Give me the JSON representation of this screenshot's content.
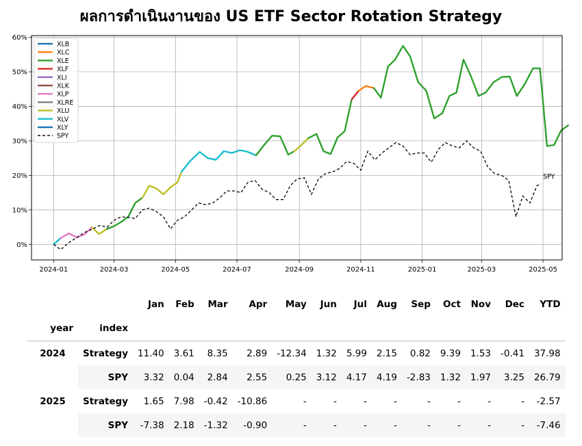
{
  "title": "ผลการดำเนินงานของ US ETF Sector Rotation Strategy",
  "chart_data": {
    "type": "line",
    "title": "ผลการดำเนินงานของ US ETF Sector Rotation Strategy",
    "xlabel": "",
    "ylabel": "",
    "xlim": [
      "2023-12-10",
      "2025-05-20"
    ],
    "ylim": [
      -4.5,
      60.5
    ],
    "grid": true,
    "legend_position": "top-left",
    "x_ticks": [
      "2024-01",
      "2024-03",
      "2024-05",
      "2024-07",
      "2024-09",
      "2024-11",
      "2025-01",
      "2025-03",
      "2025-05"
    ],
    "y_ticks": [
      "0%",
      "10%",
      "20%",
      "30%",
      "40%",
      "50%",
      "60%"
    ],
    "y_tick_values": [
      0,
      10,
      20,
      30,
      40,
      50,
      60
    ],
    "legend": [
      {
        "name": "XLB",
        "color": "#1f77b4",
        "dash": false
      },
      {
        "name": "XLC",
        "color": "#ff7f0e",
        "dash": false
      },
      {
        "name": "XLE",
        "color": "#2ca02c",
        "dash": false
      },
      {
        "name": "XLF",
        "color": "#d62728",
        "dash": false
      },
      {
        "name": "XLI",
        "color": "#9467bd",
        "dash": false
      },
      {
        "name": "XLK",
        "color": "#8c564b",
        "dash": false
      },
      {
        "name": "XLP",
        "color": "#e377c2",
        "dash": false
      },
      {
        "name": "XLRE",
        "color": "#7f7f7f",
        "dash": false
      },
      {
        "name": "XLU",
        "color": "#bcbd22",
        "dash": false
      },
      {
        "name": "XLV",
        "color": "#17becf",
        "dash": false
      },
      {
        "name": "XLY",
        "color": "#1f77b4",
        "dash": false
      },
      {
        "name": "SPY",
        "color": "#000000",
        "dash": true
      }
    ],
    "strategy_segments": [
      {
        "sector": "XLV",
        "points": [
          [
            "2024-01-01",
            0
          ],
          [
            "2024-01-08",
            1.8
          ]
        ]
      },
      {
        "sector": "XLP",
        "points": [
          [
            "2024-01-08",
            1.8
          ],
          [
            "2024-01-16",
            3.2
          ],
          [
            "2024-01-24",
            2.0
          ],
          [
            "2024-02-01",
            3.0
          ],
          [
            "2024-02-08",
            5.0
          ]
        ]
      },
      {
        "sector": "XLU",
        "points": [
          [
            "2024-02-08",
            5.0
          ],
          [
            "2024-02-15",
            3.0
          ],
          [
            "2024-02-23",
            4.5
          ]
        ]
      },
      {
        "sector": "XLE",
        "points": [
          [
            "2024-02-23",
            4.5
          ],
          [
            "2024-03-01",
            5.3
          ],
          [
            "2024-03-08",
            6.5
          ],
          [
            "2024-03-15",
            8.0
          ],
          [
            "2024-03-22",
            12.0
          ],
          [
            "2024-03-29",
            13.5
          ]
        ]
      },
      {
        "sector": "XLU",
        "points": [
          [
            "2024-03-29",
            13.5
          ],
          [
            "2024-04-05",
            17.0
          ],
          [
            "2024-04-12",
            16.2
          ],
          [
            "2024-04-19",
            14.5
          ],
          [
            "2024-04-26",
            16.5
          ],
          [
            "2024-05-03",
            18.0
          ],
          [
            "2024-05-07",
            21.0
          ]
        ]
      },
      {
        "sector": "XLV",
        "points": [
          [
            "2024-05-07",
            21.0
          ],
          [
            "2024-05-15",
            24.0
          ],
          [
            "2024-05-25",
            26.8
          ],
          [
            "2024-06-02",
            25.0
          ],
          [
            "2024-06-10",
            24.5
          ],
          [
            "2024-06-18",
            27.0
          ],
          [
            "2024-06-26",
            26.5
          ],
          [
            "2024-07-04",
            27.3
          ],
          [
            "2024-07-12",
            26.8
          ],
          [
            "2024-07-20",
            25.8
          ]
        ]
      },
      {
        "sector": "XLE",
        "points": [
          [
            "2024-07-20",
            25.8
          ],
          [
            "2024-07-28",
            28.8
          ],
          [
            "2024-08-05",
            31.5
          ],
          [
            "2024-08-13",
            31.3
          ],
          [
            "2024-08-21",
            26.0
          ],
          [
            "2024-08-27",
            27.0
          ]
        ]
      },
      {
        "sector": "XLU",
        "points": [
          [
            "2024-08-27",
            27.0
          ],
          [
            "2024-09-02",
            28.5
          ],
          [
            "2024-09-10",
            30.8
          ]
        ]
      },
      {
        "sector": "XLE",
        "points": [
          [
            "2024-09-10",
            30.8
          ],
          [
            "2024-09-18",
            32.0
          ],
          [
            "2024-09-25",
            27.0
          ],
          [
            "2024-10-02",
            26.2
          ],
          [
            "2024-10-09",
            31.0
          ],
          [
            "2024-10-16",
            32.8
          ],
          [
            "2024-10-23",
            42.0
          ]
        ]
      },
      {
        "sector": "XLF",
        "points": [
          [
            "2024-10-23",
            42.0
          ],
          [
            "2024-10-30",
            44.5
          ]
        ]
      },
      {
        "sector": "XLC",
        "points": [
          [
            "2024-10-30",
            44.5
          ],
          [
            "2024-11-06",
            45.9
          ],
          [
            "2024-11-14",
            45.3
          ]
        ]
      },
      {
        "sector": "XLE",
        "points": [
          [
            "2024-11-14",
            45.3
          ],
          [
            "2024-11-21",
            42.5
          ],
          [
            "2024-11-28",
            51.5
          ],
          [
            "2024-12-05",
            53.5
          ],
          [
            "2024-12-13",
            57.5
          ],
          [
            "2024-12-20",
            54.5
          ],
          [
            "2024-12-28",
            47.0
          ],
          [
            "2025-01-05",
            44.5
          ],
          [
            "2025-01-13",
            36.5
          ],
          [
            "2025-01-21",
            38.0
          ],
          [
            "2025-01-28",
            43.0
          ],
          [
            "2025-02-04",
            44.0
          ],
          [
            "2025-02-11",
            53.5
          ],
          [
            "2025-02-18",
            49.0
          ],
          [
            "2025-02-26",
            43.0
          ],
          [
            "2025-03-05",
            44.0
          ],
          [
            "2025-03-13",
            47.0
          ],
          [
            "2025-03-21",
            48.5
          ],
          [
            "2025-03-29",
            48.6
          ],
          [
            "2025-04-05",
            43.0
          ],
          [
            "2025-04-13",
            46.5
          ],
          [
            "2025-04-21",
            51.0
          ],
          [
            "2025-04-28",
            51.0
          ],
          [
            "2025-05-05",
            28.5
          ],
          [
            "2025-05-12",
            28.8
          ],
          [
            "2025-05-19",
            33.0
          ],
          [
            "2025-05-26",
            34.5
          ]
        ]
      }
    ],
    "spy_series": {
      "name": "SPY",
      "points": [
        [
          "2024-01-01",
          0
        ],
        [
          "2024-01-08",
          -1.5
        ],
        [
          "2024-01-16",
          0.5
        ],
        [
          "2024-01-24",
          2.0
        ],
        [
          "2024-02-01",
          3.5
        ],
        [
          "2024-02-09",
          4.5
        ],
        [
          "2024-02-16",
          5.5
        ],
        [
          "2024-02-23",
          5.0
        ],
        [
          "2024-03-01",
          7.0
        ],
        [
          "2024-03-08",
          8.0
        ],
        [
          "2024-03-15",
          7.8
        ],
        [
          "2024-03-22",
          7.5
        ],
        [
          "2024-03-29",
          10.0
        ],
        [
          "2024-04-05",
          10.5
        ],
        [
          "2024-04-12",
          9.5
        ],
        [
          "2024-04-19",
          8.0
        ],
        [
          "2024-04-26",
          4.5
        ],
        [
          "2024-05-03",
          7.0
        ],
        [
          "2024-05-10",
          8.0
        ],
        [
          "2024-05-17",
          10.0
        ],
        [
          "2024-05-24",
          12.0
        ],
        [
          "2024-05-31",
          11.5
        ],
        [
          "2024-06-07",
          12.0
        ],
        [
          "2024-06-14",
          13.5
        ],
        [
          "2024-06-21",
          15.5
        ],
        [
          "2024-06-28",
          15.5
        ],
        [
          "2024-07-05",
          15.0
        ],
        [
          "2024-07-12",
          18.0
        ],
        [
          "2024-07-19",
          18.5
        ],
        [
          "2024-07-26",
          16.0
        ],
        [
          "2024-08-02",
          15.0
        ],
        [
          "2024-08-09",
          13.0
        ],
        [
          "2024-08-16",
          13.0
        ],
        [
          "2024-08-23",
          17.0
        ],
        [
          "2024-08-30",
          19.0
        ],
        [
          "2024-09-06",
          19.3
        ],
        [
          "2024-09-13",
          14.5
        ],
        [
          "2024-09-20",
          19.0
        ],
        [
          "2024-09-27",
          20.5
        ],
        [
          "2024-10-04",
          21.0
        ],
        [
          "2024-10-11",
          22.0
        ],
        [
          "2024-10-18",
          24.0
        ],
        [
          "2024-10-25",
          23.5
        ],
        [
          "2024-11-01",
          21.5
        ],
        [
          "2024-11-08",
          27.0
        ],
        [
          "2024-11-15",
          24.5
        ],
        [
          "2024-11-22",
          26.5
        ],
        [
          "2024-11-29",
          28.0
        ],
        [
          "2024-12-06",
          29.5
        ],
        [
          "2024-12-13",
          28.5
        ],
        [
          "2024-12-20",
          26.0
        ],
        [
          "2024-12-27",
          26.5
        ],
        [
          "2025-01-03",
          26.5
        ],
        [
          "2025-01-10",
          23.8
        ],
        [
          "2025-01-17",
          27.5
        ],
        [
          "2025-01-24",
          29.5
        ],
        [
          "2025-01-31",
          28.5
        ],
        [
          "2025-02-07",
          28.0
        ],
        [
          "2025-02-14",
          30.0
        ],
        [
          "2025-02-21",
          28.0
        ],
        [
          "2025-02-28",
          27.0
        ],
        [
          "2025-03-07",
          22.5
        ],
        [
          "2025-03-14",
          20.5
        ],
        [
          "2025-03-21",
          20.0
        ],
        [
          "2025-03-28",
          18.5
        ],
        [
          "2025-04-04",
          8.0
        ],
        [
          "2025-04-11",
          14.0
        ],
        [
          "2025-04-18",
          12.0
        ],
        [
          "2025-04-25",
          17.0
        ],
        [
          "2025-04-29",
          17.5
        ]
      ]
    },
    "annotations": [
      {
        "text": "SPY",
        "x": "2025-04-29",
        "y": 18.5
      }
    ]
  },
  "table": {
    "months": [
      "Jan",
      "Feb",
      "Mar",
      "Apr",
      "May",
      "Jun",
      "Jul",
      "Aug",
      "Sep",
      "Oct",
      "Nov",
      "Dec",
      "YTD"
    ],
    "year_header": "year",
    "index_header": "index",
    "rows": [
      {
        "year": "2024",
        "index": "Strategy",
        "values": [
          "11.40",
          "3.61",
          "8.35",
          "2.89",
          "-12.34",
          "1.32",
          "5.99",
          "2.15",
          "0.82",
          "9.39",
          "1.53",
          "-0.41",
          "37.98"
        ]
      },
      {
        "year": "",
        "index": "SPY",
        "values": [
          "3.32",
          "0.04",
          "2.84",
          "2.55",
          "0.25",
          "3.12",
          "4.17",
          "4.19",
          "-2.83",
          "1.32",
          "1.97",
          "3.25",
          "26.79"
        ]
      },
      {
        "year": "2025",
        "index": "Strategy",
        "values": [
          "1.65",
          "7.98",
          "-0.42",
          "-10.86",
          "-",
          "-",
          "-",
          "-",
          "-",
          "-",
          "-",
          "-",
          "-2.57"
        ]
      },
      {
        "year": "",
        "index": "SPY",
        "values": [
          "-7.38",
          "2.18",
          "-1.32",
          "-0.90",
          "-",
          "-",
          "-",
          "-",
          "-",
          "-",
          "-",
          "-",
          "-7.46"
        ]
      }
    ]
  }
}
